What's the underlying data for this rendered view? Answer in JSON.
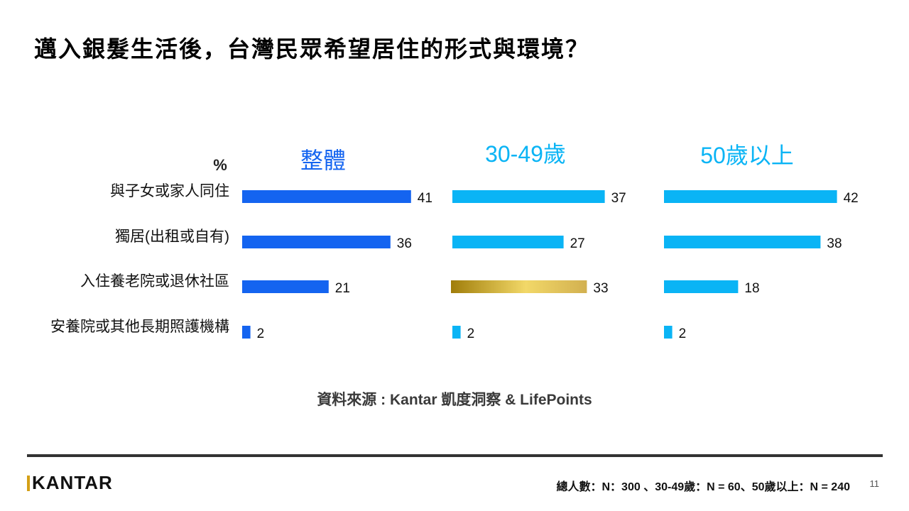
{
  "title": "邁入銀髮生活後，台灣民眾希望居住的形式與環境？",
  "source": "資料來源 : Kantar 凱度洞察 & LifePoints",
  "sample_note": "總人數：N：300 、30-49歲：N = 60、50歲以上：N = 240",
  "page_number": "11",
  "logo": "KANTAR",
  "colors": {
    "overall": "#1464f0",
    "group": "#0ab4f5",
    "highlight_dark": "#a07d0a",
    "highlight_light": "#f2d868",
    "logo_accent": "#d4a017"
  },
  "chart_data": {
    "type": "bar",
    "orientation": "horizontal",
    "unit_label": "%",
    "categories": [
      "與子女或家人同住",
      "獨居(出租或自有)",
      "入住養老院或退休社區",
      "安養院或其他長期照護機構"
    ],
    "series": [
      {
        "name": "整體",
        "values": [
          41,
          36,
          21,
          2
        ]
      },
      {
        "name": "30-49歲",
        "values": [
          37,
          27,
          33,
          2
        ]
      },
      {
        "name": "50歲以上",
        "values": [
          42,
          38,
          18,
          2
        ]
      }
    ],
    "highlight": {
      "series": 1,
      "category": 2
    }
  }
}
